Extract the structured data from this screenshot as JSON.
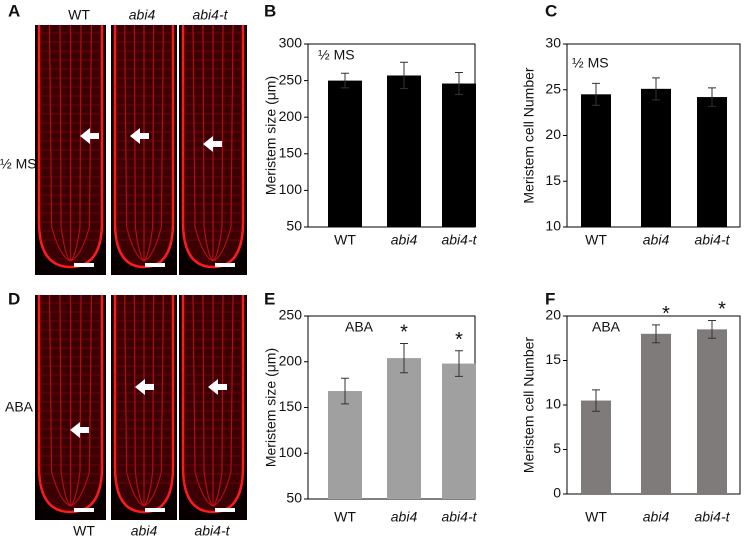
{
  "panels": {
    "A": {
      "label": "A",
      "columns": [
        "WT",
        "abi4",
        "abi4-t"
      ],
      "condition": "½ MS"
    },
    "D": {
      "label": "D",
      "columns": [
        "WT",
        "abi4",
        "abi4-t"
      ],
      "condition": "ABA"
    }
  },
  "chart_data": [
    {
      "type": "bar",
      "panel": "B",
      "ylabel": "Meristem size (μm)",
      "annotation": "½ MS",
      "categories": [
        "WT",
        "abi4",
        "abi4-t"
      ],
      "values": [
        250,
        257,
        246
      ],
      "errors": [
        10,
        18,
        15
      ],
      "color": "#000000",
      "ylim": [
        50,
        300
      ],
      "yticks": [
        50,
        100,
        150,
        200,
        250,
        300
      ]
    },
    {
      "type": "bar",
      "panel": "C",
      "ylabel": "Meristem cell Number",
      "annotation": "½ MS",
      "categories": [
        "WT",
        "abi4",
        "abi4-t"
      ],
      "values": [
        24.5,
        25.1,
        24.2
      ],
      "errors": [
        1.2,
        1.2,
        1.0
      ],
      "color": "#000000",
      "ylim": [
        10,
        30
      ],
      "yticks": [
        10,
        15,
        20,
        25,
        30
      ]
    },
    {
      "type": "bar",
      "panel": "E",
      "ylabel": "Meristem size (μm)",
      "annotation": "ABA",
      "categories": [
        "WT",
        "abi4",
        "abi4-t"
      ],
      "values": [
        168,
        204,
        198
      ],
      "errors": [
        14,
        16,
        14
      ],
      "significance": [
        null,
        "*",
        "*"
      ],
      "color": "#a0a0a0",
      "ylim": [
        50,
        250
      ],
      "yticks": [
        50,
        100,
        150,
        200,
        250
      ]
    },
    {
      "type": "bar",
      "panel": "F",
      "ylabel": "Meristem cell Number",
      "annotation": "ABA",
      "categories": [
        "WT",
        "abi4",
        "abi4-t"
      ],
      "values": [
        10.5,
        18,
        18.5
      ],
      "errors": [
        1.2,
        1.0,
        1.0
      ],
      "significance": [
        null,
        "*",
        "*"
      ],
      "color": "#7f7b7b",
      "ylim": [
        0,
        20
      ],
      "yticks": [
        0,
        5,
        10,
        15,
        20
      ]
    }
  ]
}
